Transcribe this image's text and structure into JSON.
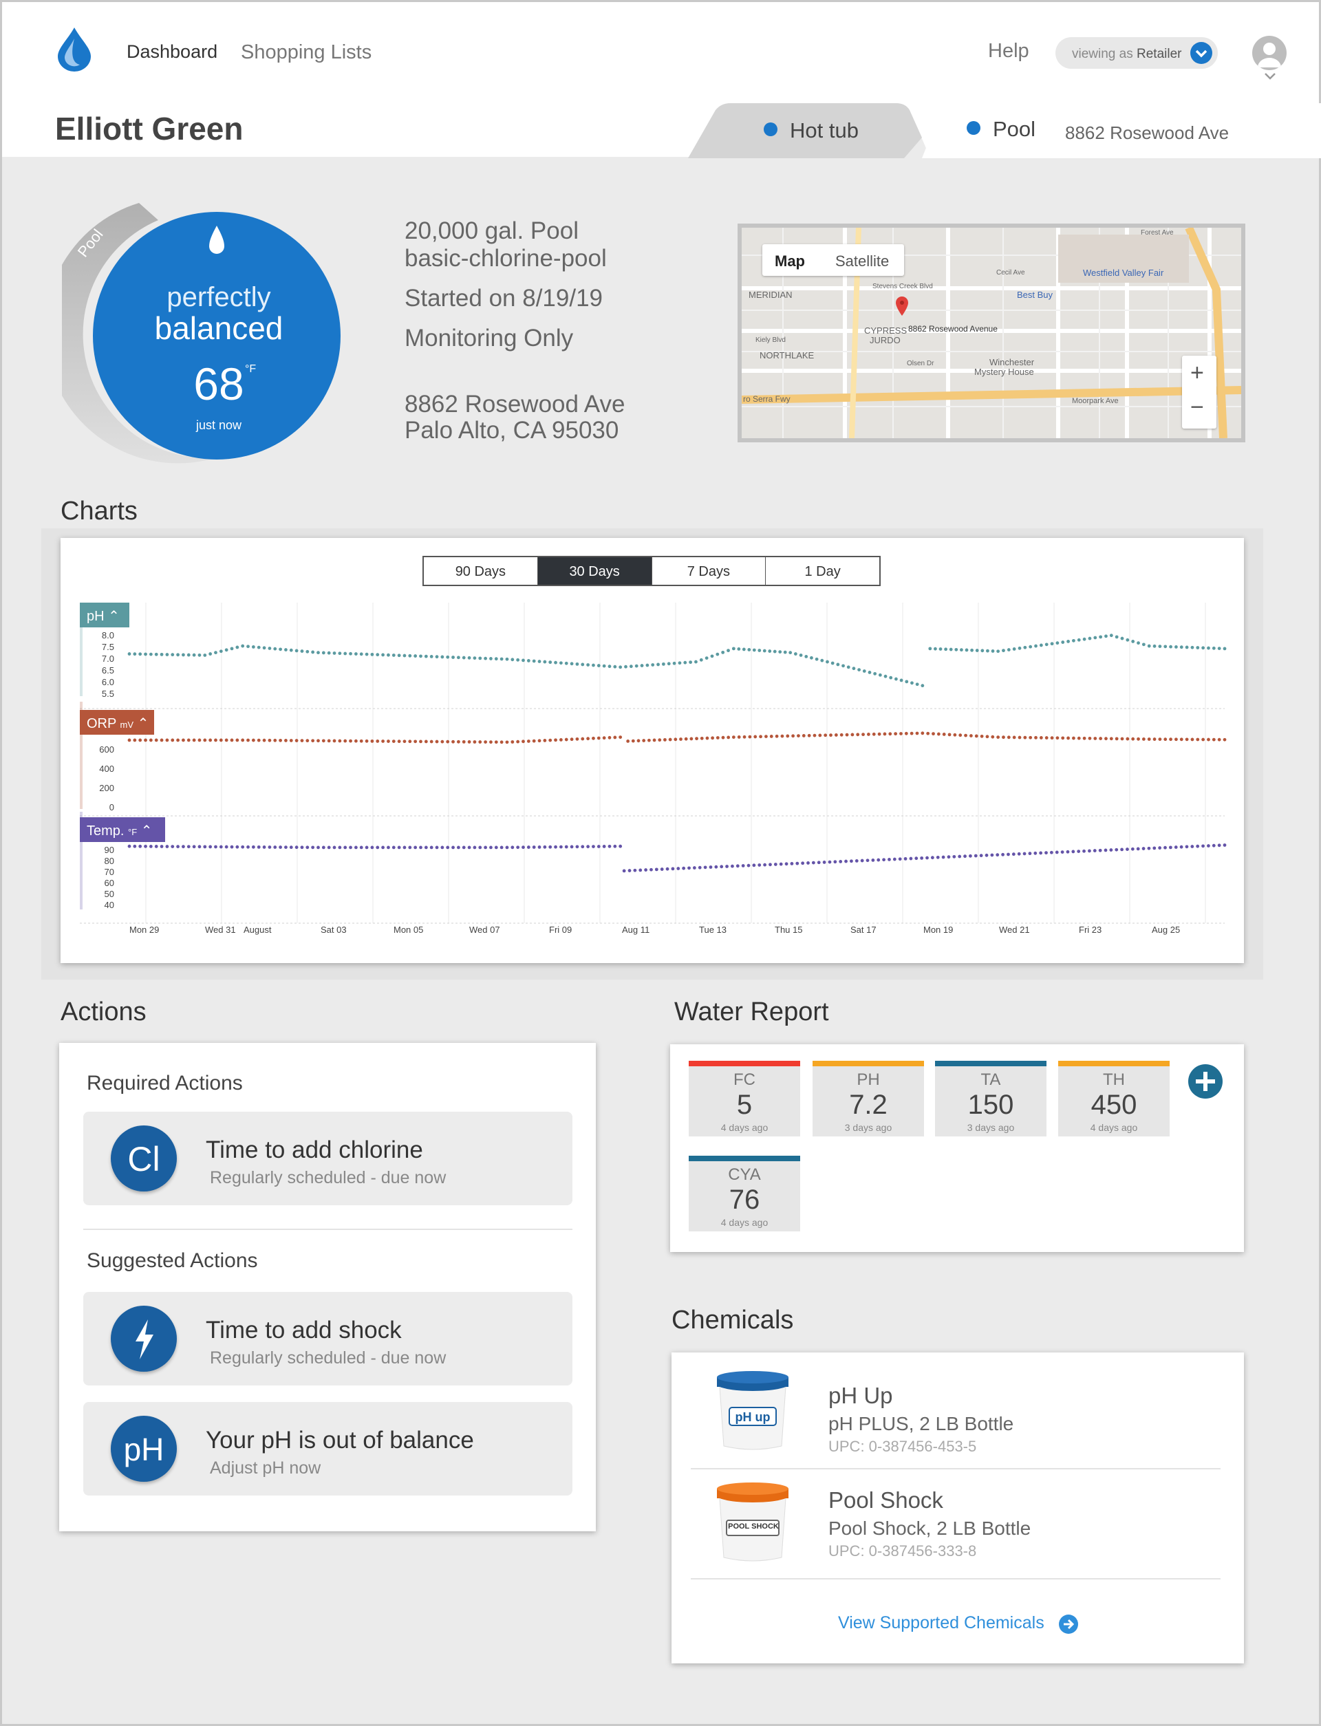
{
  "nav": {
    "dashboard": "Dashboard",
    "shopping_lists": "Shopping Lists",
    "help": "Help"
  },
  "viewing": {
    "prefix": "viewing as",
    "role": "Retailer"
  },
  "owner": {
    "name": "Elliott Green"
  },
  "tabs": [
    {
      "label": "Hot tub",
      "dot_color": "#1a77c9",
      "active": false
    },
    {
      "label": "Pool",
      "dot_color": "#1a77c9",
      "active": true
    }
  ],
  "tab_address": "8862 Rosewood Ave",
  "status": {
    "label": "Pool",
    "line1": "perfectly",
    "line2": "balanced",
    "temperature": "68",
    "unit": "°F",
    "updated": "just now",
    "color": "#1a77c9"
  },
  "pool_info": {
    "size": "20,000 gal. Pool",
    "type": "basic-chlorine-pool",
    "started": "Started on 8/19/19",
    "mode": "Monitoring Only",
    "address1": "8862 Rosewood Ave",
    "address2": "Palo Alto, CA 95030"
  },
  "map": {
    "map_button": "Map",
    "satellite_button": "Satellite",
    "zoom_in": "+",
    "zoom_out": "−",
    "pin_label": "8862 Rosewood Avenue",
    "labels": {
      "meridian": "MERIDIAN",
      "cypress": "CYPRESS",
      "jurdo": "JURDO",
      "northlake": "NORTHLAKE",
      "westfield": "Westfield Valley Fair",
      "best_buy": "Best Buy",
      "winchester": "Winchester",
      "mystery": "Mystery House",
      "stevens_creek": "Stevens Creek Blvd",
      "serra": "ro Serra Fwy",
      "moorpark": "Moorpark Ave",
      "cecil": "Cecil Ave",
      "forest": "Forest Ave",
      "olsen": "Olsen Dr",
      "kiely": "Kiely Blvd"
    }
  },
  "sections": {
    "charts": "Charts",
    "actions": "Actions",
    "water_report": "Water Report",
    "chemicals": "Chemicals"
  },
  "chart_ranges": [
    {
      "label": "90 Days",
      "active": false
    },
    {
      "label": "30 Days",
      "active": true
    },
    {
      "label": "7 Days",
      "active": false
    },
    {
      "label": "1 Day",
      "active": false
    }
  ],
  "chart_data": [
    {
      "type": "scatter",
      "title": "pH",
      "color": "#5b9aa0",
      "y_ticks": [
        "8.0",
        "7.5",
        "7.0",
        "6.5",
        "6.0",
        "5.5"
      ],
      "ylim": [
        5.5,
        8.0
      ],
      "x_days": [
        0,
        2,
        3,
        5,
        10,
        13,
        15,
        16,
        17.5,
        21,
        21.2,
        23,
        26,
        27,
        29
      ],
      "series": [
        {
          "name": "pH",
          "values": [
            7.1,
            7.05,
            7.4,
            7.15,
            6.9,
            6.6,
            6.8,
            7.3,
            7.15,
            5.9,
            7.3,
            7.2,
            7.8,
            7.4,
            7.3
          ]
        }
      ]
    },
    {
      "type": "scatter",
      "title": "ORP",
      "unit": "mV",
      "color": "#b5563a",
      "y_ticks": [
        "600",
        "400",
        "200",
        "0"
      ],
      "ylim": [
        0,
        800
      ],
      "x_days": [
        0,
        3,
        10,
        13,
        13.2,
        16,
        21,
        23,
        27,
        29
      ],
      "series": [
        {
          "name": "ORP",
          "values": [
            690,
            690,
            670,
            720,
            680,
            720,
            760,
            720,
            700,
            695
          ]
        }
      ]
    },
    {
      "type": "scatter",
      "title": "Temp.",
      "unit": "°F",
      "color": "#6454a8",
      "y_ticks": [
        "90",
        "80",
        "70",
        "60",
        "50",
        "40"
      ],
      "ylim": [
        35,
        95
      ],
      "x_days": [
        0,
        5,
        10,
        13,
        13.1,
        29
      ],
      "series": [
        {
          "name": "Temp.",
          "values": [
            89,
            88,
            88,
            89,
            68,
            90
          ]
        }
      ]
    }
  ],
  "x_axis_ticks": [
    "Mon 29",
    "Wed 31",
    "August",
    "Sat 03",
    "Mon 05",
    "Wed 07",
    "Fri 09",
    "Aug 11",
    "Tue 13",
    "Thu 15",
    "Sat 17",
    "Mon 19",
    "Wed 21",
    "Fri 23",
    "Aug 25"
  ],
  "actions": {
    "required_title": "Required Actions",
    "suggested_title": "Suggested Actions",
    "required": [
      {
        "icon": "Cl",
        "title": "Time to add chlorine",
        "subtitle": "Regularly scheduled - due now"
      }
    ],
    "suggested": [
      {
        "icon": "lightning-icon",
        "title": "Time to add shock",
        "subtitle": "Regularly scheduled - due now"
      },
      {
        "icon": "pH",
        "title": "Your pH is out of balance",
        "subtitle": "Adjust pH now"
      }
    ]
  },
  "water_report": [
    {
      "label": "FC",
      "value": "5",
      "ago": "4 days ago",
      "color": "#f03c2f"
    },
    {
      "label": "PH",
      "value": "7.2",
      "ago": "3 days ago",
      "color": "#f5a623"
    },
    {
      "label": "TA",
      "value": "150",
      "ago": "3 days ago",
      "color": "#1f6e93"
    },
    {
      "label": "TH",
      "value": "450",
      "ago": "4 days ago",
      "color": "#f5a623"
    },
    {
      "label": "CYA",
      "value": "76",
      "ago": "4 days ago",
      "color": "#1f6e93"
    }
  ],
  "chemicals": [
    {
      "name": "pH Up",
      "desc": "pH PLUS, 2 LB Bottle",
      "upc": "UPC: 0-387456-453-5",
      "lid_color": "#1a5fa0",
      "label": "pH up"
    },
    {
      "name": "Pool Shock",
      "desc": "Pool Shock, 2 LB Bottle",
      "upc": "UPC: 0-387456-333-8",
      "lid_color": "#f07a1a",
      "label": "POOL SHOCK"
    }
  ],
  "view_chemicals": "View Supported Chemicals"
}
